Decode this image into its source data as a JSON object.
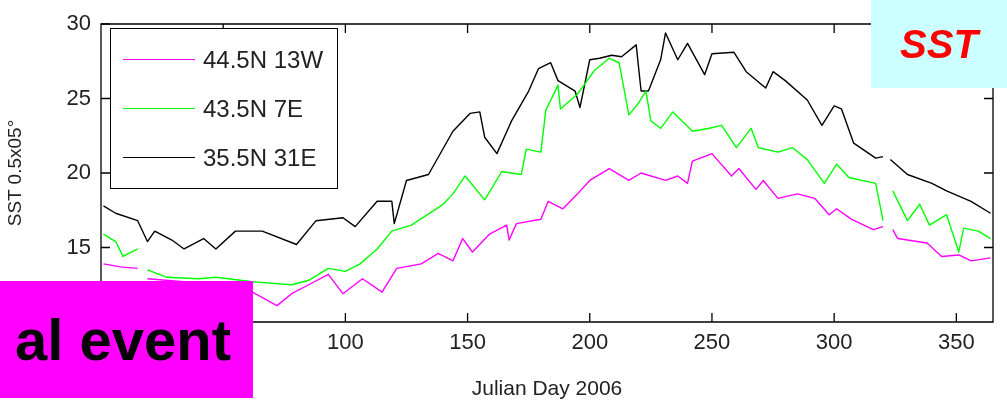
{
  "chart_data": {
    "type": "line",
    "xlabel": "Julian Day 2006",
    "ylabel": "SST 0.5x05°",
    "xlim": [
      0,
      365
    ],
    "ylim": [
      10,
      30
    ],
    "xticks": [
      {
        "value": 50,
        "label": null
      },
      100,
      150,
      200,
      250,
      300,
      350
    ],
    "yticks": [
      15,
      20,
      25,
      30
    ],
    "grid": false,
    "legend": "top left",
    "marker": "none",
    "line_style": "solid",
    "annotations": [
      "SST",
      "al event"
    ],
    "series": [
      {
        "name": "44.5N 13W",
        "color": "#ff00ff",
        "x": [
          1,
          8,
          15,
          17,
          19,
          34,
          62,
          72,
          78,
          85,
          93,
          99,
          107,
          115,
          121,
          131,
          138,
          144,
          148,
          152,
          159,
          166,
          167,
          170,
          180,
          183,
          189,
          195,
          200,
          208,
          216,
          221,
          231,
          236,
          240,
          242,
          250,
          258,
          261,
          268,
          271,
          277,
          285,
          292,
          298,
          301,
          307,
          316,
          320,
          322,
          324,
          326,
          338,
          344,
          351,
          356,
          364
        ],
        "values": [
          13.9,
          13.7,
          13.6,
          null,
          12.9,
          12.7,
          12.0,
          11.1,
          11.9,
          12.5,
          13.2,
          11.9,
          12.9,
          12.0,
          13.6,
          13.9,
          14.6,
          14.1,
          15.6,
          14.7,
          15.9,
          16.5,
          15.5,
          16.6,
          16.9,
          18.1,
          17.6,
          18.6,
          19.5,
          20.3,
          19.5,
          20.0,
          19.5,
          19.8,
          19.3,
          20.8,
          21.3,
          19.8,
          20.3,
          18.9,
          19.5,
          18.3,
          18.6,
          18.3,
          17.2,
          17.6,
          16.9,
          16.2,
          16.4,
          null,
          16.2,
          15.6,
          15.3,
          14.4,
          14.5,
          14.1,
          14.3
        ]
      },
      {
        "name": "43.5N 7E",
        "color": "#00ff00",
        "x": [
          1,
          6,
          9,
          15,
          17,
          19,
          27,
          40,
          47,
          62,
          78,
          85,
          93,
          100,
          106,
          113,
          119,
          127,
          140,
          144,
          149,
          157,
          164,
          172,
          174,
          180,
          182,
          187,
          188,
          195,
          202,
          208,
          212,
          216,
          220,
          223,
          225,
          229,
          234,
          242,
          249,
          254,
          260,
          266,
          269,
          277,
          283,
          289,
          296,
          301,
          306,
          317,
          320,
          322,
          324,
          330,
          335,
          339,
          346,
          351,
          353,
          359,
          364
        ],
        "values": [
          15.9,
          15.4,
          14.4,
          14.9,
          null,
          13.5,
          13.0,
          12.9,
          13.0,
          12.7,
          12.5,
          12.8,
          13.6,
          13.4,
          13.9,
          14.9,
          16.1,
          16.5,
          17.9,
          18.6,
          19.8,
          18.2,
          20.1,
          19.9,
          21.6,
          21.4,
          24.2,
          25.9,
          24.3,
          25.3,
          26.9,
          27.7,
          27.4,
          23.9,
          24.7,
          25.5,
          23.5,
          23.0,
          24.1,
          22.8,
          23.0,
          23.2,
          21.7,
          23.0,
          21.7,
          21.4,
          21.7,
          20.9,
          19.3,
          20.6,
          19.7,
          19.3,
          16.8,
          null,
          18.8,
          16.8,
          17.9,
          16.5,
          17.2,
          14.7,
          16.3,
          16.1,
          15.6
        ]
      },
      {
        "name": "35.5N 31E",
        "color": "#000000",
        "x": [
          1,
          6,
          15,
          19,
          22,
          29,
          34,
          42,
          47,
          55,
          66,
          80,
          88,
          99,
          104,
          113,
          119,
          120,
          125,
          134,
          144,
          151,
          155,
          157,
          162,
          168,
          175,
          179,
          184,
          187,
          194,
          196,
          200,
          204,
          209,
          213,
          219,
          221,
          224,
          229,
          231,
          236,
          240,
          247,
          250,
          259,
          264,
          272,
          275,
          280,
          289,
          295,
          300,
          303,
          308,
          317,
          320,
          322,
          323,
          330,
          340,
          346,
          356,
          364
        ],
        "values": [
          17.8,
          17.3,
          16.8,
          15.4,
          16.1,
          15.5,
          14.9,
          15.6,
          14.9,
          16.1,
          16.1,
          15.2,
          16.8,
          17.0,
          16.4,
          18.1,
          18.1,
          16.6,
          19.5,
          19.9,
          22.8,
          24.0,
          24.1,
          22.4,
          21.3,
          23.5,
          25.5,
          27.0,
          27.4,
          26.2,
          25.5,
          24.4,
          27.6,
          27.7,
          27.9,
          27.8,
          28.6,
          25.5,
          25.5,
          27.6,
          29.4,
          27.6,
          28.7,
          26.6,
          28.0,
          28.1,
          26.8,
          25.7,
          26.8,
          26.2,
          24.9,
          23.2,
          24.5,
          24.3,
          22.0,
          21.0,
          21.1,
          null,
          20.9,
          19.9,
          19.3,
          18.8,
          18.1,
          17.3
        ]
      }
    ]
  }
}
